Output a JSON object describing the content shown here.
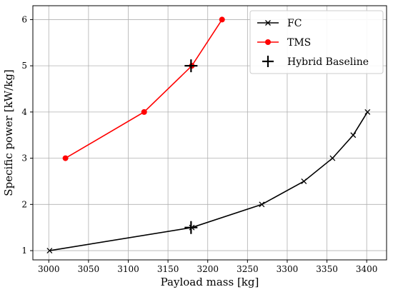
{
  "chart_data": {
    "type": "line",
    "xlabel": "Payload mass [kg]",
    "ylabel": "Specific power [kW/kg]",
    "xlim": [
      2980,
      3425
    ],
    "ylim": [
      0.8,
      6.3
    ],
    "x_ticks": [
      3000,
      3050,
      3100,
      3150,
      3200,
      3250,
      3300,
      3350,
      3400
    ],
    "y_ticks": [
      1,
      2,
      3,
      4,
      5,
      6
    ],
    "grid": true,
    "legend_position": "top-right",
    "series": [
      {
        "name": "FC",
        "color": "#000000",
        "marker": "x",
        "points": [
          [
            3001,
            1.0
          ],
          [
            3180,
            1.5
          ],
          [
            3268,
            2.0
          ],
          [
            3321,
            2.5
          ],
          [
            3357,
            3.0
          ],
          [
            3383,
            3.5
          ],
          [
            3401,
            4.0
          ]
        ]
      },
      {
        "name": "TMS",
        "color": "#ff0000",
        "marker": "circle",
        "points": [
          [
            3021,
            3.0
          ],
          [
            3120,
            4.0
          ],
          [
            3180,
            5.0
          ],
          [
            3218,
            6.0
          ]
        ]
      },
      {
        "name": "Hybrid Baseline",
        "color": "#000000",
        "marker": "plus",
        "linestyle": "none",
        "points": [
          [
            3179,
            5.0
          ],
          [
            3179,
            1.5
          ]
        ]
      }
    ]
  }
}
